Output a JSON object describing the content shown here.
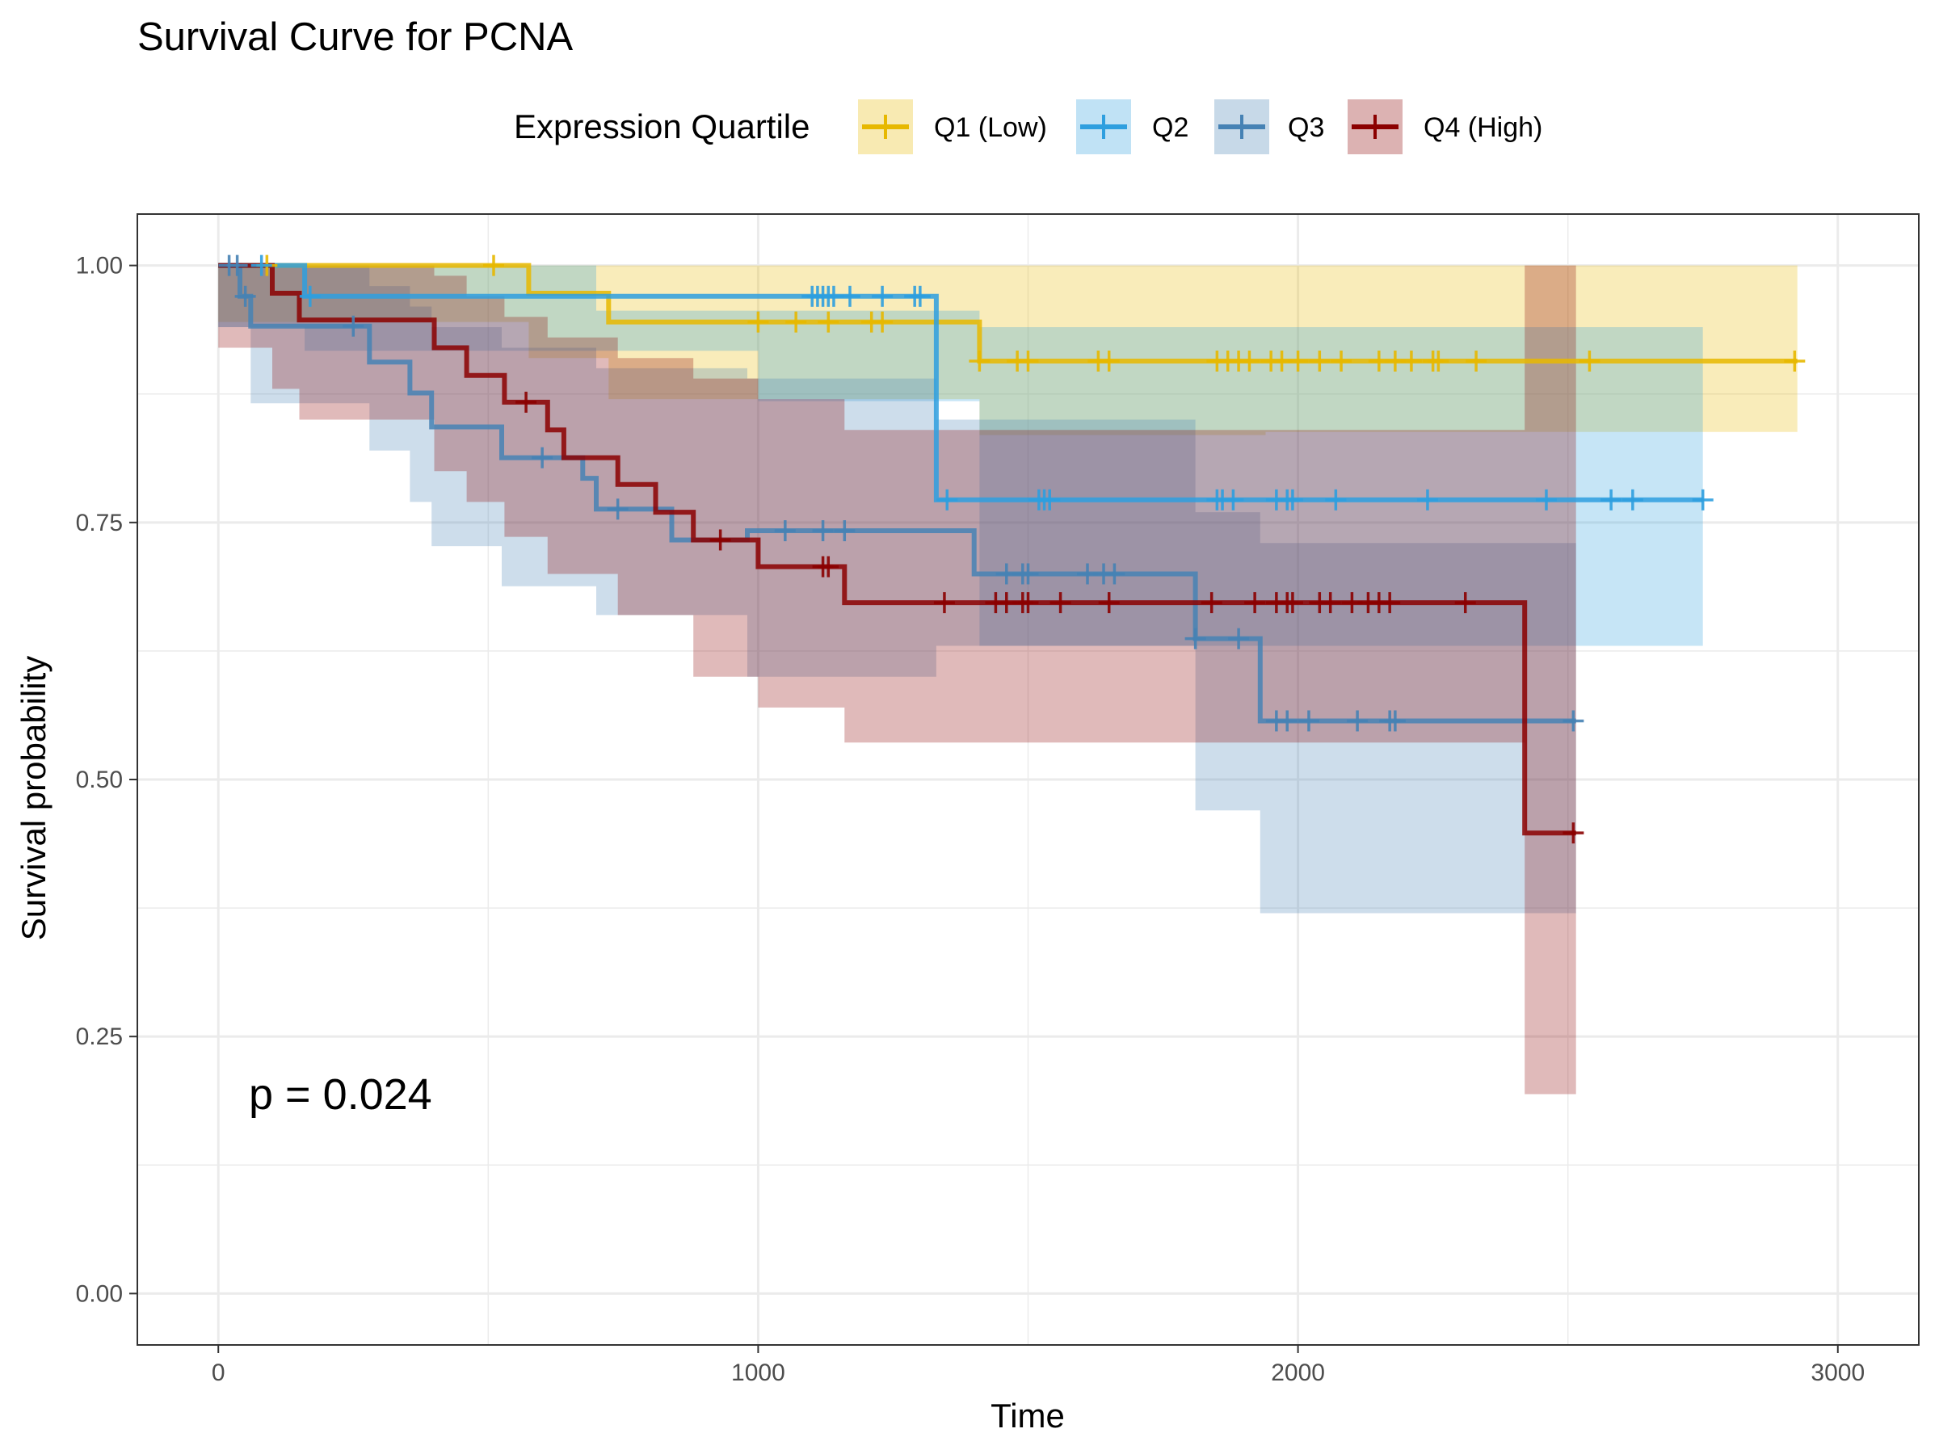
{
  "chart_data": {
    "type": "line",
    "subtype": "kaplan-meier survival curve with confidence bands and censor marks",
    "title": "Survival Curve for PCNA",
    "xlabel": "Time",
    "ylabel": "Survival probability",
    "xlim": [
      -150,
      3150
    ],
    "ylim": [
      -0.05,
      1.05
    ],
    "x_ticks": [
      0,
      1000,
      2000,
      3000
    ],
    "x_tick_labels": [
      "0",
      "1000",
      "2000",
      "3000"
    ],
    "y_ticks": [
      0,
      0.25,
      0.5,
      0.75,
      1.0
    ],
    "y_tick_labels": [
      "0.00",
      "0.25",
      "0.50",
      "0.75",
      "1.00"
    ],
    "grid": true,
    "legend": {
      "title": "Expression Quartile",
      "placement": "top",
      "entries": [
        "Q1 (Low)",
        "Q2",
        "Q3",
        "Q4 (High)"
      ]
    },
    "annotation": "p = 0.024",
    "series": [
      {
        "name": "Q1 (Low)",
        "color": "#E7B800",
        "steps": [
          [
            0,
            1.0
          ],
          [
            575,
            0.973
          ],
          [
            723,
            0.945
          ],
          [
            1410,
            0.907
          ],
          [
            2925,
            0.907
          ]
        ],
        "ci_band": [
          [
            0,
            0.945,
            1.0
          ],
          [
            575,
            0.91,
            1.0
          ],
          [
            723,
            0.87,
            1.0
          ],
          [
            1410,
            0.835,
            1.0
          ],
          [
            1940,
            0.838,
            1.0
          ],
          [
            2925,
            0.838,
            1.0
          ]
        ],
        "censored": [
          90,
          510,
          1000,
          1070,
          1130,
          1210,
          1230,
          1410,
          1480,
          1500,
          1630,
          1650,
          1850,
          1870,
          1890,
          1910,
          1950,
          1970,
          2000,
          2040,
          2080,
          2150,
          2180,
          2210,
          2250,
          2260,
          2330,
          2540,
          2920
        ]
      },
      {
        "name": "Q2",
        "color": "#2E9FDF",
        "steps": [
          [
            0,
            1.0
          ],
          [
            160,
            0.97
          ],
          [
            1330,
            0.82
          ],
          [
            1330,
            0.772
          ],
          [
            2750,
            0.772
          ]
        ],
        "ci_band": [
          [
            0,
            0.94,
            1.0
          ],
          [
            160,
            0.917,
            1.0
          ],
          [
            700,
            0.917,
            0.956
          ],
          [
            1000,
            0.868,
            0.956
          ],
          [
            1410,
            0.63,
            0.94
          ],
          [
            2750,
            0.63,
            0.94
          ]
        ],
        "censored": [
          80,
          170,
          1100,
          1110,
          1120,
          1130,
          1140,
          1170,
          1230,
          1290,
          1300,
          1350,
          1520,
          1530,
          1540,
          1850,
          1860,
          1880,
          1960,
          1980,
          1990,
          2070,
          2240,
          2460,
          2580,
          2620,
          2750
        ]
      },
      {
        "name": "Q3",
        "color": "#4682B4",
        "steps": [
          [
            0,
            1.0
          ],
          [
            40,
            0.97
          ],
          [
            60,
            0.941
          ],
          [
            280,
            0.906
          ],
          [
            355,
            0.876
          ],
          [
            395,
            0.843
          ],
          [
            525,
            0.813
          ],
          [
            675,
            0.793
          ],
          [
            700,
            0.763
          ],
          [
            840,
            0.733
          ],
          [
            980,
            0.742
          ],
          [
            1400,
            0.7
          ],
          [
            1810,
            0.637
          ],
          [
            1930,
            0.557
          ],
          [
            2515,
            0.557
          ]
        ],
        "ci_band": [
          [
            0,
            0.94,
            1.0
          ],
          [
            60,
            0.866,
            1.0
          ],
          [
            280,
            0.82,
            0.98
          ],
          [
            355,
            0.77,
            0.96
          ],
          [
            395,
            0.727,
            0.94
          ],
          [
            525,
            0.688,
            0.92
          ],
          [
            700,
            0.66,
            0.9
          ],
          [
            980,
            0.6,
            0.89
          ],
          [
            1330,
            0.63,
            0.85
          ],
          [
            1810,
            0.47,
            0.76
          ],
          [
            1930,
            0.37,
            0.73
          ],
          [
            2515,
            0.37,
            0.73
          ]
        ],
        "censored": [
          20,
          35,
          50,
          250,
          600,
          740,
          1050,
          1120,
          1160,
          1460,
          1490,
          1500,
          1610,
          1640,
          1660,
          1810,
          1890,
          1960,
          1980,
          2020,
          2110,
          2170,
          2180,
          2510
        ]
      },
      {
        "name": "Q4 (High)",
        "color": "#8B0000",
        "steps": [
          [
            0,
            1.0
          ],
          [
            100,
            0.973
          ],
          [
            150,
            0.947
          ],
          [
            400,
            0.92
          ],
          [
            460,
            0.893
          ],
          [
            530,
            0.867
          ],
          [
            610,
            0.84
          ],
          [
            640,
            0.813
          ],
          [
            740,
            0.787
          ],
          [
            810,
            0.76
          ],
          [
            880,
            0.733
          ],
          [
            1000,
            0.707
          ],
          [
            1160,
            0.672
          ],
          [
            2420,
            0.448
          ],
          [
            2515,
            0.448
          ]
        ],
        "ci_band": [
          [
            0,
            0.92,
            1.0
          ],
          [
            100,
            0.88,
            1.0
          ],
          [
            150,
            0.85,
            1.0
          ],
          [
            400,
            0.8,
            0.99
          ],
          [
            460,
            0.77,
            0.97
          ],
          [
            530,
            0.736,
            0.95
          ],
          [
            610,
            0.7,
            0.93
          ],
          [
            740,
            0.66,
            0.91
          ],
          [
            880,
            0.6,
            0.89
          ],
          [
            1000,
            0.57,
            0.87
          ],
          [
            1160,
            0.536,
            0.84
          ],
          [
            2420,
            0.194,
            1.0
          ],
          [
            2515,
            0.194,
            1.0
          ]
        ],
        "censored": [
          570,
          930,
          1120,
          1130,
          1345,
          1440,
          1460,
          1490,
          1500,
          1560,
          1650,
          1840,
          1920,
          1960,
          1980,
          1990,
          2040,
          2060,
          2100,
          2130,
          2150,
          2170,
          2310,
          2510
        ]
      }
    ]
  }
}
